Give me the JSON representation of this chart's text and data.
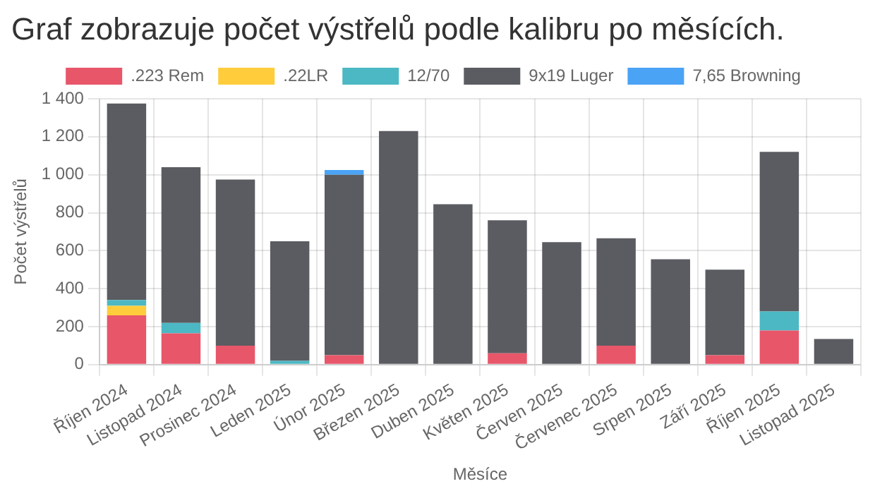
{
  "chart_data": {
    "type": "bar",
    "title": "Graf zobrazuje počet výstřelů podle kalibru po měsících.",
    "xlabel": "Měsíce",
    "ylabel": "Počet výstřelů",
    "categories": [
      "Říjen 2024",
      "Listopad 2024",
      "Prosinec 2024",
      "Leden 2025",
      "Únor 2025",
      "Březen 2025",
      "Duben 2025",
      "Květen 2025",
      "Červen 2025",
      "Červenec 2025",
      "Srpen 2025",
      "Září 2025",
      "Říjen 2025",
      "Listopad 2025"
    ],
    "series": [
      {
        "name": ".223 Rem",
        "color": "#e8566a",
        "values": [
          260,
          165,
          100,
          0,
          50,
          0,
          0,
          60,
          0,
          100,
          0,
          50,
          180,
          0
        ]
      },
      {
        "name": ".22LR",
        "color": "#ffcd3c",
        "values": [
          50,
          0,
          0,
          0,
          0,
          0,
          0,
          0,
          0,
          0,
          0,
          0,
          0,
          0
        ]
      },
      {
        "name": "12/70",
        "color": "#4bb8c4",
        "values": [
          30,
          55,
          0,
          20,
          0,
          0,
          0,
          0,
          0,
          0,
          0,
          0,
          100,
          0
        ]
      },
      {
        "name": "9x19 Luger",
        "color": "#5a5c61",
        "values": [
          1035,
          820,
          875,
          630,
          950,
          1230,
          845,
          700,
          645,
          565,
          555,
          450,
          840,
          135
        ]
      },
      {
        "name": "7,65 Browning",
        "color": "#4aa3f5",
        "values": [
          0,
          0,
          0,
          0,
          25,
          0,
          0,
          0,
          0,
          0,
          0,
          0,
          0,
          0
        ]
      }
    ],
    "stacked": true,
    "ylim": [
      0,
      1400
    ],
    "yticks": [
      {
        "value": 0,
        "label": "0"
      },
      {
        "value": 200,
        "label": "200"
      },
      {
        "value": 400,
        "label": "400"
      },
      {
        "value": 600,
        "label": "600"
      },
      {
        "value": 800,
        "label": "800"
      },
      {
        "value": 1000,
        "label": "1 000"
      },
      {
        "value": 1200,
        "label": "1 200"
      },
      {
        "value": 1400,
        "label": "1 400"
      }
    ],
    "grid": true,
    "legend": "top"
  }
}
